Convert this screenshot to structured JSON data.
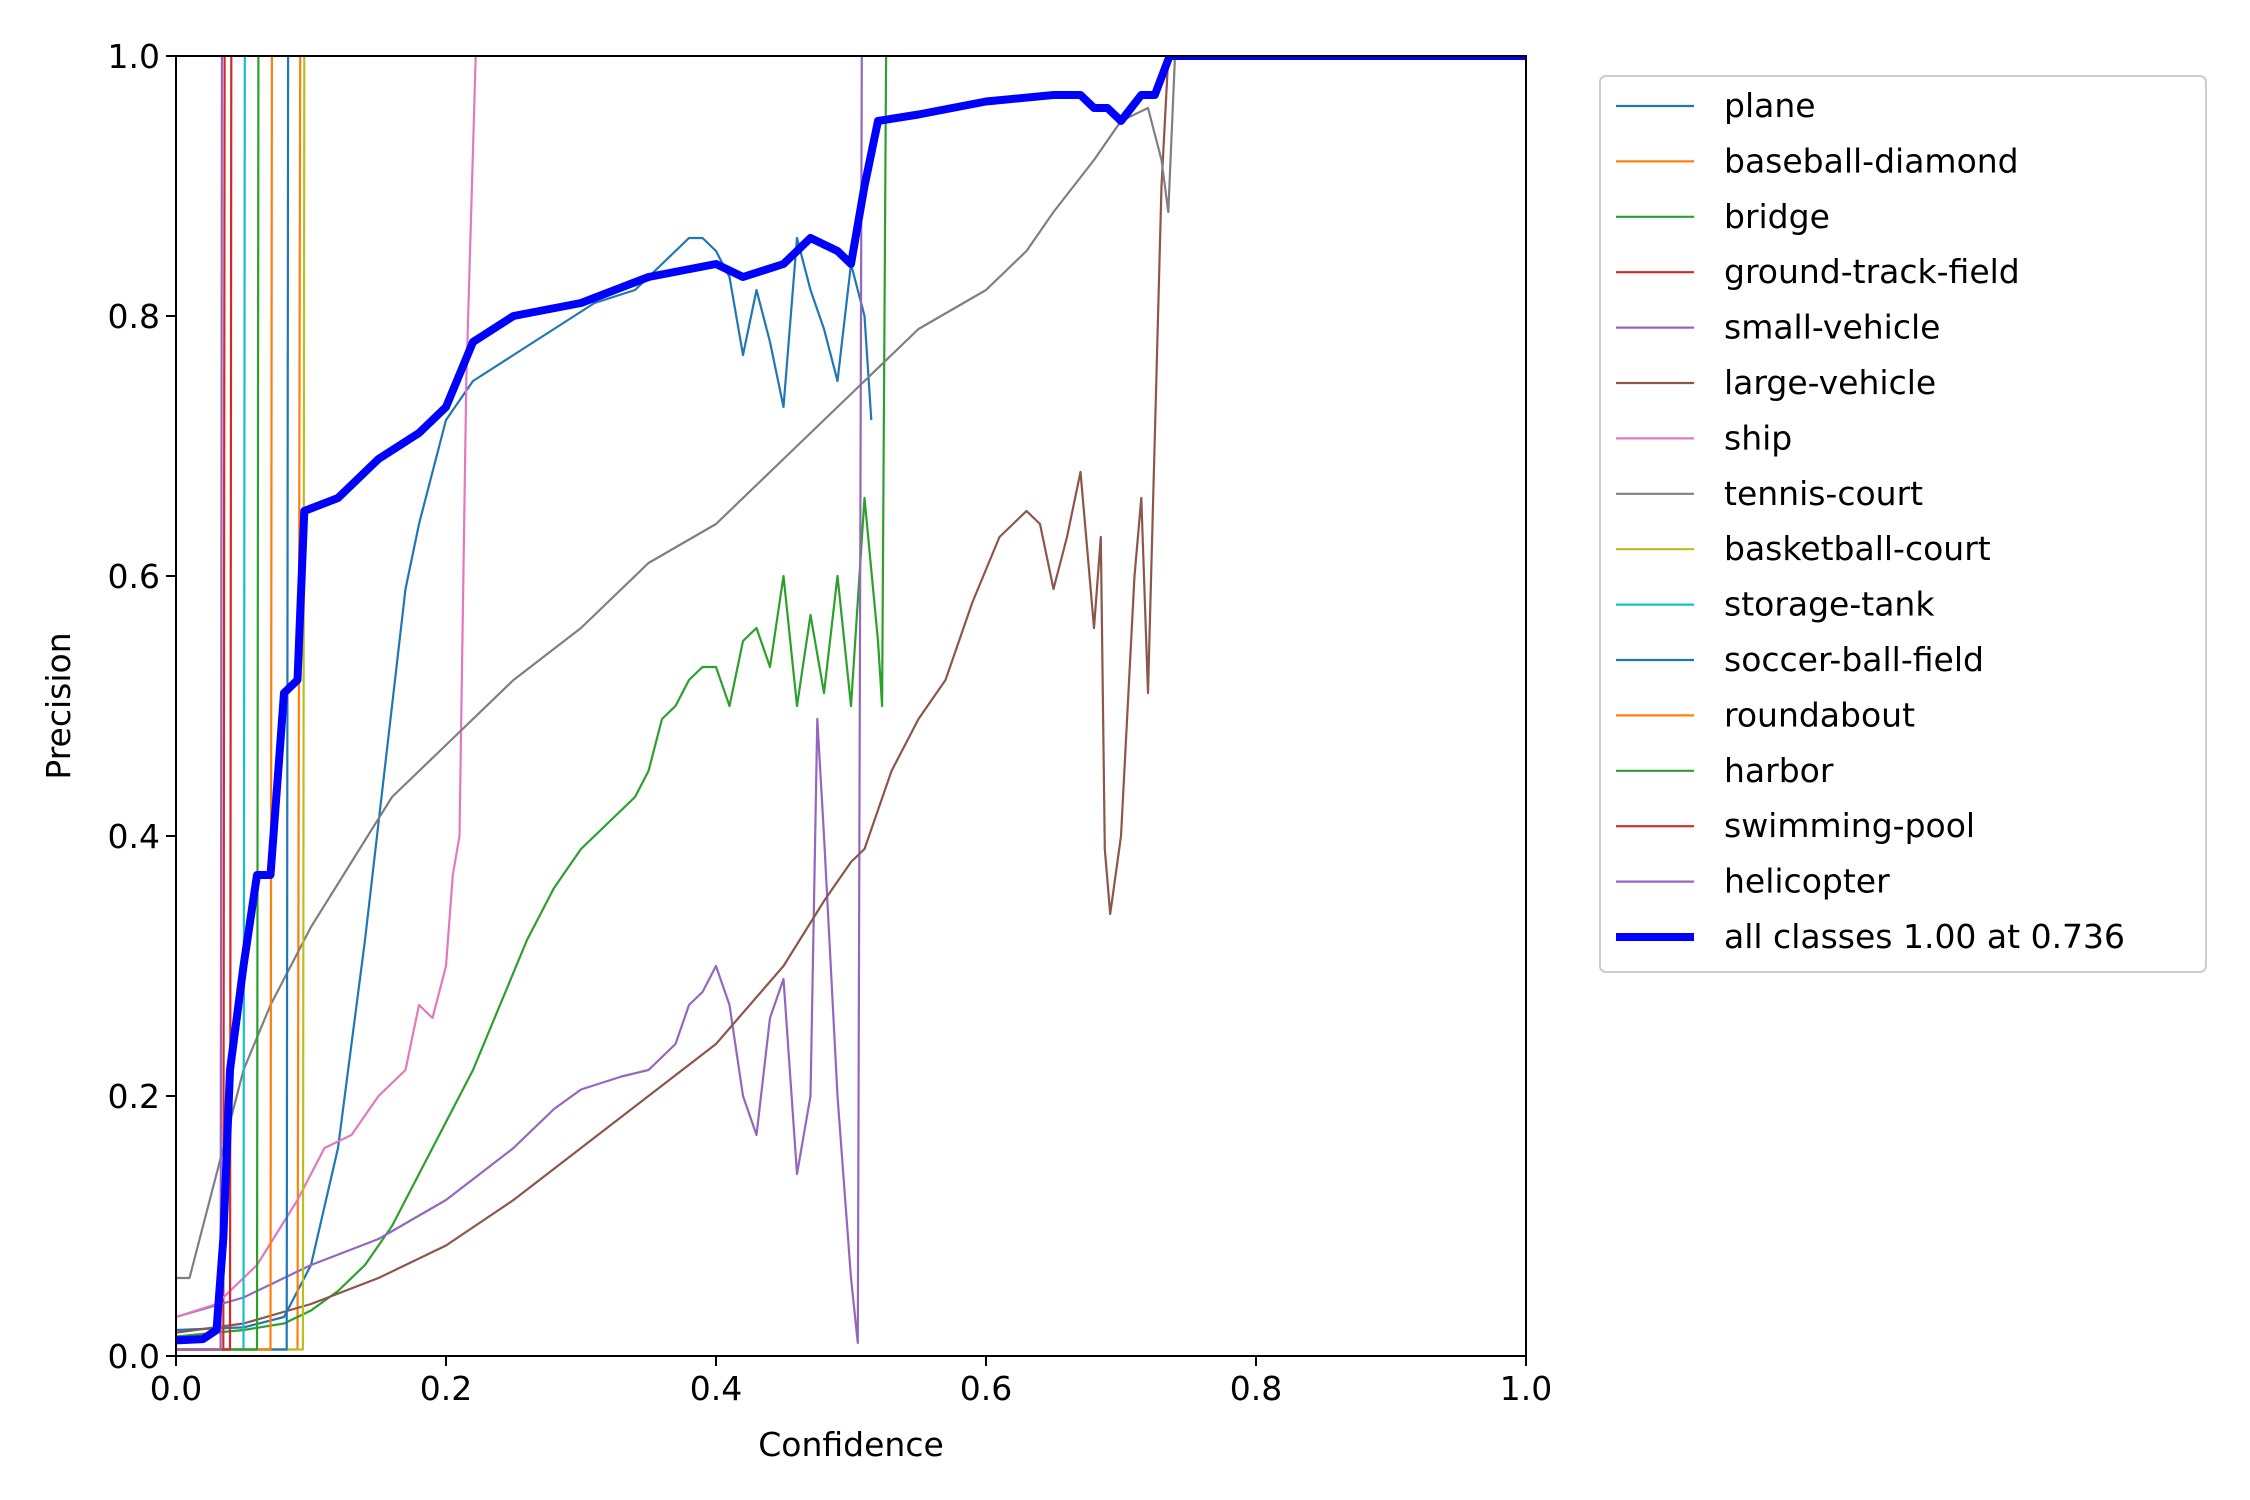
{
  "chart_data": {
    "type": "line",
    "title": "",
    "xlabel": "Confidence",
    "ylabel": "Precision",
    "xlim": [
      0,
      1
    ],
    "ylim": [
      0,
      1
    ],
    "x_ticks": [
      "0.0",
      "0.2",
      "0.4",
      "0.6",
      "0.8",
      "1.0"
    ],
    "y_ticks": [
      "0.0",
      "0.2",
      "0.4",
      "0.6",
      "0.8",
      "1.0"
    ],
    "grid": false,
    "legend_position": "outside-top-right",
    "series": [
      {
        "name": "plane",
        "color": "#1f77b4",
        "points": [
          [
            0,
            0.02
          ],
          [
            0.05,
            0.022
          ],
          [
            0.08,
            0.03
          ],
          [
            0.1,
            0.07
          ],
          [
            0.12,
            0.16
          ],
          [
            0.14,
            0.32
          ],
          [
            0.16,
            0.5
          ],
          [
            0.17,
            0.59
          ],
          [
            0.18,
            0.64
          ],
          [
            0.19,
            0.68
          ],
          [
            0.2,
            0.72
          ],
          [
            0.22,
            0.75
          ],
          [
            0.25,
            0.77
          ],
          [
            0.28,
            0.79
          ],
          [
            0.31,
            0.81
          ],
          [
            0.34,
            0.82
          ],
          [
            0.37,
            0.85
          ],
          [
            0.38,
            0.86
          ],
          [
            0.39,
            0.86
          ],
          [
            0.4,
            0.85
          ],
          [
            0.41,
            0.83
          ],
          [
            0.42,
            0.77
          ],
          [
            0.43,
            0.82
          ],
          [
            0.44,
            0.78
          ],
          [
            0.45,
            0.73
          ],
          [
            0.46,
            0.86
          ],
          [
            0.47,
            0.82
          ],
          [
            0.48,
            0.79
          ],
          [
            0.49,
            0.75
          ],
          [
            0.5,
            0.84
          ],
          [
            0.51,
            0.8
          ],
          [
            0.515,
            0.72
          ]
        ]
      },
      {
        "name": "baseball-diamond",
        "color": "#ff7f0e",
        "points": [
          [
            0,
            0.005
          ],
          [
            0.09,
            0.005
          ],
          [
            0.092,
            1.0
          ]
        ]
      },
      {
        "name": "bridge",
        "color": "#2ca02c",
        "points": [
          [
            0,
            0.015
          ],
          [
            0.05,
            0.02
          ],
          [
            0.08,
            0.025
          ],
          [
            0.1,
            0.035
          ],
          [
            0.12,
            0.05
          ],
          [
            0.14,
            0.07
          ],
          [
            0.16,
            0.1
          ],
          [
            0.18,
            0.14
          ],
          [
            0.2,
            0.18
          ],
          [
            0.22,
            0.22
          ],
          [
            0.24,
            0.27
          ],
          [
            0.26,
            0.32
          ],
          [
            0.28,
            0.36
          ],
          [
            0.3,
            0.39
          ],
          [
            0.32,
            0.41
          ],
          [
            0.34,
            0.43
          ],
          [
            0.35,
            0.45
          ],
          [
            0.36,
            0.49
          ],
          [
            0.37,
            0.5
          ],
          [
            0.38,
            0.52
          ],
          [
            0.39,
            0.53
          ],
          [
            0.4,
            0.53
          ],
          [
            0.41,
            0.5
          ],
          [
            0.42,
            0.55
          ],
          [
            0.43,
            0.56
          ],
          [
            0.44,
            0.53
          ],
          [
            0.45,
            0.6
          ],
          [
            0.46,
            0.5
          ],
          [
            0.47,
            0.57
          ],
          [
            0.48,
            0.51
          ],
          [
            0.49,
            0.6
          ],
          [
            0.5,
            0.5
          ],
          [
            0.51,
            0.66
          ],
          [
            0.52,
            0.55
          ],
          [
            0.523,
            0.5
          ],
          [
            0.526,
            1.0
          ]
        ]
      },
      {
        "name": "ground-track-field",
        "color": "#d62728",
        "points": [
          [
            0,
            0.005
          ],
          [
            0.035,
            0.005
          ],
          [
            0.036,
            1.0
          ]
        ]
      },
      {
        "name": "small-vehicle",
        "color": "#9467bd",
        "points": [
          [
            0,
            0.03
          ],
          [
            0.05,
            0.045
          ],
          [
            0.1,
            0.07
          ],
          [
            0.15,
            0.09
          ],
          [
            0.2,
            0.12
          ],
          [
            0.25,
            0.16
          ],
          [
            0.28,
            0.19
          ],
          [
            0.3,
            0.205
          ],
          [
            0.33,
            0.215
          ],
          [
            0.35,
            0.22
          ],
          [
            0.37,
            0.24
          ],
          [
            0.38,
            0.27
          ],
          [
            0.39,
            0.28
          ],
          [
            0.4,
            0.3
          ],
          [
            0.41,
            0.27
          ],
          [
            0.42,
            0.2
          ],
          [
            0.43,
            0.17
          ],
          [
            0.44,
            0.26
          ],
          [
            0.45,
            0.29
          ],
          [
            0.46,
            0.14
          ],
          [
            0.47,
            0.2
          ],
          [
            0.475,
            0.49
          ],
          [
            0.48,
            0.4
          ],
          [
            0.49,
            0.2
          ],
          [
            0.5,
            0.06
          ],
          [
            0.505,
            0.01
          ],
          [
            0.508,
            1.0
          ]
        ]
      },
      {
        "name": "large-vehicle",
        "color": "#8c564b",
        "points": [
          [
            0,
            0.018
          ],
          [
            0.05,
            0.025
          ],
          [
            0.1,
            0.04
          ],
          [
            0.15,
            0.06
          ],
          [
            0.2,
            0.085
          ],
          [
            0.25,
            0.12
          ],
          [
            0.3,
            0.16
          ],
          [
            0.35,
            0.2
          ],
          [
            0.4,
            0.24
          ],
          [
            0.45,
            0.3
          ],
          [
            0.48,
            0.35
          ],
          [
            0.5,
            0.38
          ],
          [
            0.51,
            0.39
          ],
          [
            0.53,
            0.45
          ],
          [
            0.55,
            0.49
          ],
          [
            0.57,
            0.52
          ],
          [
            0.59,
            0.58
          ],
          [
            0.61,
            0.63
          ],
          [
            0.62,
            0.64
          ],
          [
            0.63,
            0.65
          ],
          [
            0.64,
            0.64
          ],
          [
            0.65,
            0.59
          ],
          [
            0.66,
            0.63
          ],
          [
            0.67,
            0.68
          ],
          [
            0.675,
            0.62
          ],
          [
            0.68,
            0.56
          ],
          [
            0.685,
            0.63
          ],
          [
            0.688,
            0.39
          ],
          [
            0.692,
            0.34
          ],
          [
            0.7,
            0.4
          ],
          [
            0.71,
            0.6
          ],
          [
            0.715,
            0.66
          ],
          [
            0.72,
            0.51
          ],
          [
            0.73,
            0.9
          ],
          [
            0.735,
            1.0
          ]
        ]
      },
      {
        "name": "ship",
        "color": "#e377c2",
        "points": [
          [
            0,
            0.03
          ],
          [
            0.03,
            0.04
          ],
          [
            0.06,
            0.07
          ],
          [
            0.09,
            0.12
          ],
          [
            0.11,
            0.16
          ],
          [
            0.13,
            0.17
          ],
          [
            0.15,
            0.2
          ],
          [
            0.17,
            0.22
          ],
          [
            0.18,
            0.27
          ],
          [
            0.19,
            0.26
          ],
          [
            0.2,
            0.3
          ],
          [
            0.205,
            0.37
          ],
          [
            0.21,
            0.4
          ],
          [
            0.215,
            0.75
          ],
          [
            0.222,
            1.0
          ]
        ]
      },
      {
        "name": "tennis-court",
        "color": "#7f7f7f",
        "points": [
          [
            0,
            0.06
          ],
          [
            0.01,
            0.06
          ],
          [
            0.03,
            0.14
          ],
          [
            0.05,
            0.22
          ],
          [
            0.07,
            0.27
          ],
          [
            0.1,
            0.33
          ],
          [
            0.13,
            0.38
          ],
          [
            0.16,
            0.43
          ],
          [
            0.2,
            0.47
          ],
          [
            0.25,
            0.52
          ],
          [
            0.3,
            0.56
          ],
          [
            0.33,
            0.59
          ],
          [
            0.35,
            0.61
          ],
          [
            0.4,
            0.64
          ],
          [
            0.45,
            0.69
          ],
          [
            0.5,
            0.74
          ],
          [
            0.55,
            0.79
          ],
          [
            0.6,
            0.82
          ],
          [
            0.63,
            0.85
          ],
          [
            0.65,
            0.88
          ],
          [
            0.68,
            0.92
          ],
          [
            0.7,
            0.95
          ],
          [
            0.72,
            0.96
          ],
          [
            0.73,
            0.92
          ],
          [
            0.735,
            0.88
          ],
          [
            0.74,
            1.0
          ]
        ]
      },
      {
        "name": "basketball-court",
        "color": "#bcbd22",
        "points": [
          [
            0,
            0.005
          ],
          [
            0.094,
            0.005
          ],
          [
            0.095,
            1.0
          ]
        ]
      },
      {
        "name": "storage-tank",
        "color": "#17becf",
        "points": [
          [
            0,
            0.005
          ],
          [
            0.05,
            0.005
          ],
          [
            0.051,
            1.0
          ]
        ]
      },
      {
        "name": "soccer-ball-field",
        "color": "#1f77b4",
        "points": [
          [
            0,
            0.005
          ],
          [
            0.082,
            0.005
          ],
          [
            0.083,
            1.0
          ]
        ]
      },
      {
        "name": "roundabout",
        "color": "#ff7f0e",
        "points": [
          [
            0,
            0.005
          ],
          [
            0.07,
            0.005
          ],
          [
            0.071,
            1.0
          ]
        ]
      },
      {
        "name": "harbor",
        "color": "#2ca02c",
        "points": [
          [
            0,
            0.005
          ],
          [
            0.06,
            0.005
          ],
          [
            0.061,
            1.0
          ]
        ]
      },
      {
        "name": "swimming-pool",
        "color": "#d62728",
        "points": [
          [
            0,
            0.005
          ],
          [
            0.04,
            0.005
          ],
          [
            0.041,
            1.0
          ]
        ]
      },
      {
        "name": "helicopter",
        "color": "#9467bd",
        "points": [
          [
            0,
            0.005
          ],
          [
            0.033,
            0.005
          ],
          [
            0.034,
            1.0
          ]
        ]
      },
      {
        "name": "all classes 1.00 at 0.736",
        "color": "#0000ff",
        "bold": true,
        "points": [
          [
            0,
            0.012
          ],
          [
            0.02,
            0.013
          ],
          [
            0.03,
            0.02
          ],
          [
            0.035,
            0.09
          ],
          [
            0.04,
            0.22
          ],
          [
            0.05,
            0.3
          ],
          [
            0.06,
            0.37
          ],
          [
            0.07,
            0.37
          ],
          [
            0.075,
            0.44
          ],
          [
            0.08,
            0.51
          ],
          [
            0.09,
            0.52
          ],
          [
            0.095,
            0.65
          ],
          [
            0.12,
            0.66
          ],
          [
            0.15,
            0.69
          ],
          [
            0.18,
            0.71
          ],
          [
            0.2,
            0.73
          ],
          [
            0.22,
            0.78
          ],
          [
            0.25,
            0.8
          ],
          [
            0.3,
            0.81
          ],
          [
            0.35,
            0.83
          ],
          [
            0.4,
            0.84
          ],
          [
            0.42,
            0.83
          ],
          [
            0.45,
            0.84
          ],
          [
            0.47,
            0.86
          ],
          [
            0.49,
            0.85
          ],
          [
            0.5,
            0.84
          ],
          [
            0.51,
            0.9
          ],
          [
            0.52,
            0.95
          ],
          [
            0.55,
            0.955
          ],
          [
            0.6,
            0.965
          ],
          [
            0.65,
            0.97
          ],
          [
            0.67,
            0.97
          ],
          [
            0.68,
            0.96
          ],
          [
            0.69,
            0.96
          ],
          [
            0.7,
            0.95
          ],
          [
            0.715,
            0.97
          ],
          [
            0.725,
            0.97
          ],
          [
            0.736,
            1.0
          ],
          [
            1.0,
            1.0
          ]
        ]
      }
    ]
  }
}
